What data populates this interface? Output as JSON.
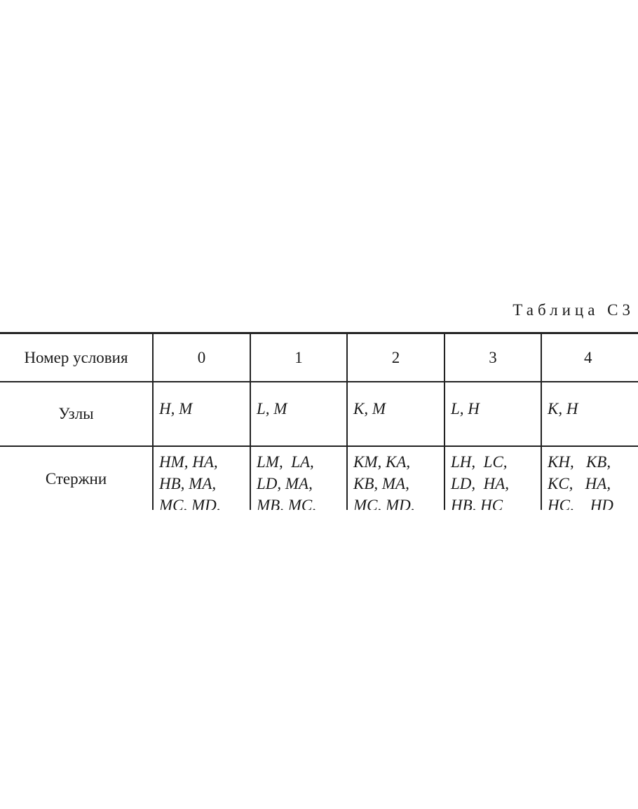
{
  "table_title": "Таблица С3",
  "header": {
    "label": "Номер условия",
    "columns": [
      "0",
      "1",
      "2",
      "3",
      "4"
    ]
  },
  "rows": [
    {
      "label": "Узлы",
      "cells": [
        "H, M",
        "L, M",
        "K, M",
        "L, H",
        "K, H"
      ]
    },
    {
      "label": "Стержни",
      "cells": [
        [
          "HM, HA,",
          "HB, MA,",
          "MC, MD,"
        ],
        [
          "LM,  LA,",
          "LD, MA,",
          "MB, MC,"
        ],
        [
          "KM, KA,",
          "KB, MA,",
          "MC, MD,"
        ],
        [
          "LH,  LC,",
          "LD,  HA,",
          "HB, HC"
        ],
        [
          "KH,   KB,",
          "KC,   HA,",
          "HC,    HD"
        ]
      ]
    }
  ]
}
